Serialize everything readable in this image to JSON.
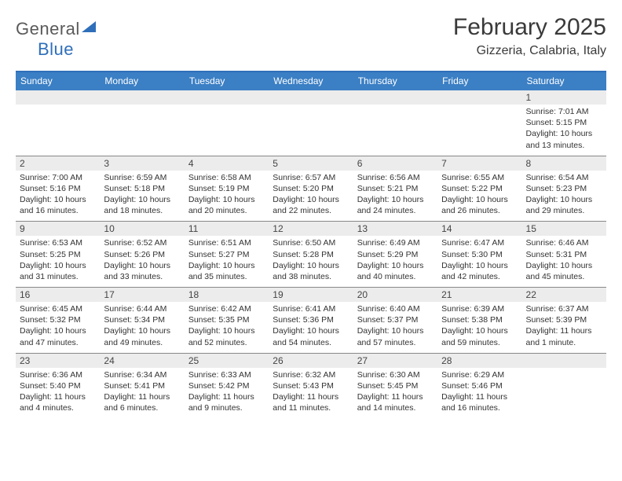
{
  "logo": {
    "part1": "General",
    "part2": "Blue"
  },
  "title": "February 2025",
  "location": "Gizzeria, Calabria, Italy",
  "colors": {
    "header_bg": "#3b7fc4",
    "header_border": "#2f6fba",
    "daynum_bg": "#ececec",
    "row_border": "#888888",
    "text": "#333333",
    "title_text": "#3a3a3a",
    "logo_gray": "#5a5a5a",
    "logo_blue": "#2f6fba"
  },
  "dayNames": [
    "Sunday",
    "Monday",
    "Tuesday",
    "Wednesday",
    "Thursday",
    "Friday",
    "Saturday"
  ],
  "weeks": [
    [
      {
        "n": "",
        "sr": "",
        "ss": "",
        "dl": ""
      },
      {
        "n": "",
        "sr": "",
        "ss": "",
        "dl": ""
      },
      {
        "n": "",
        "sr": "",
        "ss": "",
        "dl": ""
      },
      {
        "n": "",
        "sr": "",
        "ss": "",
        "dl": ""
      },
      {
        "n": "",
        "sr": "",
        "ss": "",
        "dl": ""
      },
      {
        "n": "",
        "sr": "",
        "ss": "",
        "dl": ""
      },
      {
        "n": "1",
        "sr": "Sunrise: 7:01 AM",
        "ss": "Sunset: 5:15 PM",
        "dl": "Daylight: 10 hours and 13 minutes."
      }
    ],
    [
      {
        "n": "2",
        "sr": "Sunrise: 7:00 AM",
        "ss": "Sunset: 5:16 PM",
        "dl": "Daylight: 10 hours and 16 minutes."
      },
      {
        "n": "3",
        "sr": "Sunrise: 6:59 AM",
        "ss": "Sunset: 5:18 PM",
        "dl": "Daylight: 10 hours and 18 minutes."
      },
      {
        "n": "4",
        "sr": "Sunrise: 6:58 AM",
        "ss": "Sunset: 5:19 PM",
        "dl": "Daylight: 10 hours and 20 minutes."
      },
      {
        "n": "5",
        "sr": "Sunrise: 6:57 AM",
        "ss": "Sunset: 5:20 PM",
        "dl": "Daylight: 10 hours and 22 minutes."
      },
      {
        "n": "6",
        "sr": "Sunrise: 6:56 AM",
        "ss": "Sunset: 5:21 PM",
        "dl": "Daylight: 10 hours and 24 minutes."
      },
      {
        "n": "7",
        "sr": "Sunrise: 6:55 AM",
        "ss": "Sunset: 5:22 PM",
        "dl": "Daylight: 10 hours and 26 minutes."
      },
      {
        "n": "8",
        "sr": "Sunrise: 6:54 AM",
        "ss": "Sunset: 5:23 PM",
        "dl": "Daylight: 10 hours and 29 minutes."
      }
    ],
    [
      {
        "n": "9",
        "sr": "Sunrise: 6:53 AM",
        "ss": "Sunset: 5:25 PM",
        "dl": "Daylight: 10 hours and 31 minutes."
      },
      {
        "n": "10",
        "sr": "Sunrise: 6:52 AM",
        "ss": "Sunset: 5:26 PM",
        "dl": "Daylight: 10 hours and 33 minutes."
      },
      {
        "n": "11",
        "sr": "Sunrise: 6:51 AM",
        "ss": "Sunset: 5:27 PM",
        "dl": "Daylight: 10 hours and 35 minutes."
      },
      {
        "n": "12",
        "sr": "Sunrise: 6:50 AM",
        "ss": "Sunset: 5:28 PM",
        "dl": "Daylight: 10 hours and 38 minutes."
      },
      {
        "n": "13",
        "sr": "Sunrise: 6:49 AM",
        "ss": "Sunset: 5:29 PM",
        "dl": "Daylight: 10 hours and 40 minutes."
      },
      {
        "n": "14",
        "sr": "Sunrise: 6:47 AM",
        "ss": "Sunset: 5:30 PM",
        "dl": "Daylight: 10 hours and 42 minutes."
      },
      {
        "n": "15",
        "sr": "Sunrise: 6:46 AM",
        "ss": "Sunset: 5:31 PM",
        "dl": "Daylight: 10 hours and 45 minutes."
      }
    ],
    [
      {
        "n": "16",
        "sr": "Sunrise: 6:45 AM",
        "ss": "Sunset: 5:32 PM",
        "dl": "Daylight: 10 hours and 47 minutes."
      },
      {
        "n": "17",
        "sr": "Sunrise: 6:44 AM",
        "ss": "Sunset: 5:34 PM",
        "dl": "Daylight: 10 hours and 49 minutes."
      },
      {
        "n": "18",
        "sr": "Sunrise: 6:42 AM",
        "ss": "Sunset: 5:35 PM",
        "dl": "Daylight: 10 hours and 52 minutes."
      },
      {
        "n": "19",
        "sr": "Sunrise: 6:41 AM",
        "ss": "Sunset: 5:36 PM",
        "dl": "Daylight: 10 hours and 54 minutes."
      },
      {
        "n": "20",
        "sr": "Sunrise: 6:40 AM",
        "ss": "Sunset: 5:37 PM",
        "dl": "Daylight: 10 hours and 57 minutes."
      },
      {
        "n": "21",
        "sr": "Sunrise: 6:39 AM",
        "ss": "Sunset: 5:38 PM",
        "dl": "Daylight: 10 hours and 59 minutes."
      },
      {
        "n": "22",
        "sr": "Sunrise: 6:37 AM",
        "ss": "Sunset: 5:39 PM",
        "dl": "Daylight: 11 hours and 1 minute."
      }
    ],
    [
      {
        "n": "23",
        "sr": "Sunrise: 6:36 AM",
        "ss": "Sunset: 5:40 PM",
        "dl": "Daylight: 11 hours and 4 minutes."
      },
      {
        "n": "24",
        "sr": "Sunrise: 6:34 AM",
        "ss": "Sunset: 5:41 PM",
        "dl": "Daylight: 11 hours and 6 minutes."
      },
      {
        "n": "25",
        "sr": "Sunrise: 6:33 AM",
        "ss": "Sunset: 5:42 PM",
        "dl": "Daylight: 11 hours and 9 minutes."
      },
      {
        "n": "26",
        "sr": "Sunrise: 6:32 AM",
        "ss": "Sunset: 5:43 PM",
        "dl": "Daylight: 11 hours and 11 minutes."
      },
      {
        "n": "27",
        "sr": "Sunrise: 6:30 AM",
        "ss": "Sunset: 5:45 PM",
        "dl": "Daylight: 11 hours and 14 minutes."
      },
      {
        "n": "28",
        "sr": "Sunrise: 6:29 AM",
        "ss": "Sunset: 5:46 PM",
        "dl": "Daylight: 11 hours and 16 minutes."
      },
      {
        "n": "",
        "sr": "",
        "ss": "",
        "dl": ""
      }
    ]
  ]
}
